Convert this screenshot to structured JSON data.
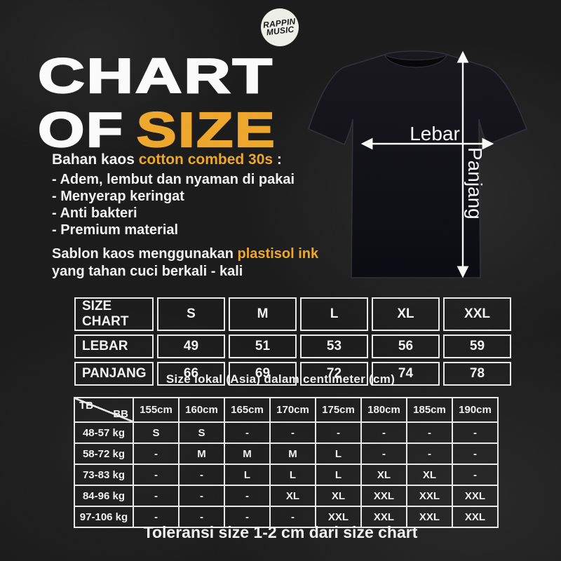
{
  "page": {
    "background": "#1a1a1a",
    "accent": "#EFA72B",
    "text_color": "#F2F2F2"
  },
  "logo": {
    "line1": "RAPPIN",
    "line2": "MUSIC"
  },
  "title": {
    "line1": "CHART",
    "line2_white": "OF",
    "line2_accent": "SIZE"
  },
  "material": {
    "heading_prefix": "Bahan kaos ",
    "heading_accent": "cotton combed 30s",
    "heading_suffix": " :",
    "bullets": [
      "- Adem, lembut dan nyaman di pakai",
      "- Menyerap keringat",
      "- Anti bakteri",
      "- Premium material"
    ]
  },
  "printing": {
    "prefix": "Sablon kaos menggunakan ",
    "accent": "plastisol ink",
    "line2": "yang tahan cuci berkali - kali"
  },
  "shirt": {
    "width_label": "Lebar",
    "length_label": "Panjang"
  },
  "size_chart": {
    "type": "table",
    "header": [
      "SIZE CHART",
      "S",
      "M",
      "L",
      "XL",
      "XXL"
    ],
    "rows": [
      [
        "LEBAR",
        "49",
        "51",
        "53",
        "56",
        "59"
      ],
      [
        "PANJANG",
        "66",
        "69",
        "72",
        "74",
        "78"
      ]
    ]
  },
  "size_note": "Size lokal (Asia) dalam centimeter (cm)",
  "fit_table": {
    "type": "table",
    "corner": {
      "tb": "TB",
      "bb": "BB"
    },
    "height_headers": [
      "155cm",
      "160cm",
      "165cm",
      "170cm",
      "175cm",
      "180cm",
      "185cm",
      "190cm"
    ],
    "rows": [
      {
        "weight": "48-57 kg",
        "cells": [
          "S",
          "S",
          "-",
          "-",
          "-",
          "-",
          "-",
          "-"
        ]
      },
      {
        "weight": "58-72 kg",
        "cells": [
          "-",
          "M",
          "M",
          "M",
          "L",
          "-",
          "-",
          "-"
        ]
      },
      {
        "weight": "73-83 kg",
        "cells": [
          "-",
          "-",
          "L",
          "L",
          "L",
          "XL",
          "XL",
          "-"
        ]
      },
      {
        "weight": "84-96 kg",
        "cells": [
          "-",
          "-",
          "-",
          "XL",
          "XL",
          "XXL",
          "XXL",
          "XXL"
        ]
      },
      {
        "weight": "97-106 kg",
        "cells": [
          "-",
          "-",
          "-",
          "-",
          "XXL",
          "XXL",
          "XXL",
          "XXL"
        ]
      }
    ]
  },
  "tolerance_note": "Toleransi size 1-2 cm dari size chart"
}
